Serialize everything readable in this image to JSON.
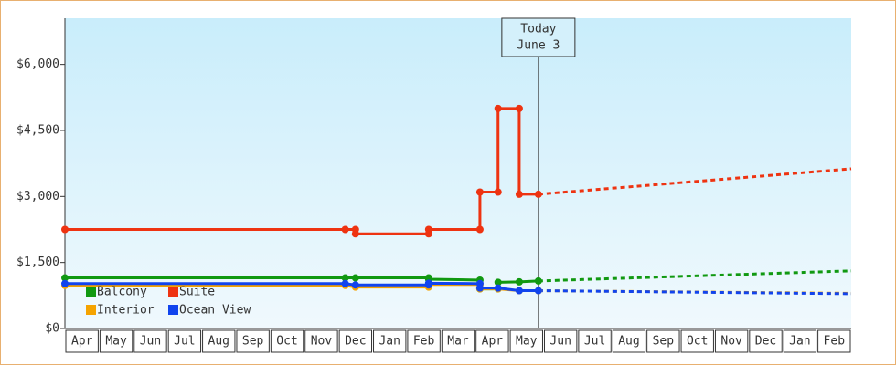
{
  "chart_data": {
    "type": "line",
    "categories": [
      "Apr",
      "May",
      "Jun",
      "Jul",
      "Aug",
      "Sep",
      "Oct",
      "Nov",
      "Dec",
      "Jan",
      "Feb",
      "Mar",
      "Apr",
      "May",
      "Jun",
      "Jul",
      "Aug",
      "Sep",
      "Oct",
      "Nov",
      "Dec",
      "Jan",
      "Feb"
    ],
    "xlim": [
      0,
      23
    ],
    "ylim": [
      0,
      7050
    ],
    "yticks": [
      {
        "value": 0,
        "label": "$0"
      },
      {
        "value": 1500,
        "label": "$1,500"
      },
      {
        "value": 3000,
        "label": "$3,000"
      },
      {
        "value": 4500,
        "label": "$4,500"
      },
      {
        "value": 6000,
        "label": "$6,000"
      }
    ],
    "annotation": {
      "x": 13.85,
      "lines": [
        "Today",
        "June 3"
      ]
    },
    "series": [
      {
        "name": "Balcony",
        "color": "#119911",
        "x": [
          0,
          8.2,
          8.5,
          10.64,
          10.64,
          12.14,
          12.14,
          12.67,
          12.67,
          13.29,
          13.85
        ],
        "values": [
          1150,
          1150,
          1150,
          1150,
          1120,
          1100,
          900,
          900,
          1050,
          1060,
          1080
        ],
        "forecast_x": [
          13.85,
          23
        ],
        "forecast_values": [
          1080,
          1310
        ]
      },
      {
        "name": "Suite",
        "color": "#ee3311",
        "x": [
          0,
          8.2,
          8.5,
          8.5,
          10.64,
          10.64,
          12.14,
          12.14,
          12.67,
          12.67,
          13.29,
          13.29,
          13.85
        ],
        "values": [
          2250,
          2250,
          2250,
          2150,
          2150,
          2250,
          2250,
          3100,
          3100,
          5000,
          5000,
          3050,
          3050
        ],
        "forecast_x": [
          13.85,
          23
        ],
        "forecast_values": [
          3050,
          3630
        ]
      },
      {
        "name": "Interior",
        "color": "#f5a300",
        "x": [
          0,
          8.2,
          8.5,
          10.64,
          10.64,
          12.14,
          12.14,
          12.67,
          13.29,
          13.85
        ],
        "values": [
          980,
          980,
          940,
          940,
          1000,
          1000,
          900,
          900,
          860,
          860
        ],
        "forecast_x": [
          13.85,
          23
        ],
        "forecast_values": [
          860,
          800
        ]
      },
      {
        "name": "Ocean View",
        "color": "#1144ee",
        "x": [
          0,
          8.2,
          8.5,
          10.64,
          10.64,
          12.14,
          12.14,
          12.67,
          13.29,
          13.85
        ],
        "values": [
          1020,
          1020,
          990,
          990,
          1030,
          1020,
          920,
          920,
          860,
          860
        ],
        "forecast_x": [
          13.85,
          23
        ],
        "forecast_values": [
          860,
          790
        ]
      }
    ]
  }
}
